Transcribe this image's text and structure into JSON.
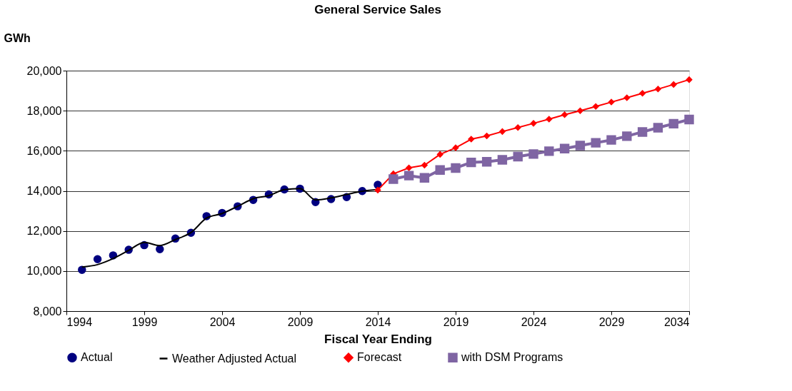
{
  "chart_data": {
    "type": "line",
    "title": "General Service Sales",
    "xlabel": "Fiscal Year Ending",
    "ylabel": "GWh",
    "xlim": [
      1994,
      2034
    ],
    "xticks": [
      1994,
      1999,
      2004,
      2009,
      2014,
      2019,
      2024,
      2029,
      2034
    ],
    "ylim": [
      8000,
      20000
    ],
    "yticks": [
      {
        "value": 8000,
        "label": "8,000"
      },
      {
        "value": 10000,
        "label": "10,000"
      },
      {
        "value": 12000,
        "label": "12,000"
      },
      {
        "value": 14000,
        "label": "14,000"
      },
      {
        "value": 16000,
        "label": "16,000"
      },
      {
        "value": 18000,
        "label": "18,000"
      },
      {
        "value": 20000,
        "label": "20,000"
      }
    ],
    "grid": "y",
    "legend": "bottom",
    "series": [
      {
        "name": "Actual",
        "type": "scatter",
        "marker": "circle",
        "color": "#000080",
        "x": [
          1995,
          1996,
          1997,
          1998,
          1999,
          2000,
          2001,
          2002,
          2003,
          2004,
          2005,
          2006,
          2007,
          2008,
          2009,
          2010,
          2011,
          2012,
          2013,
          2014
        ],
        "values": [
          10060,
          10590,
          10780,
          11060,
          11290,
          11090,
          11620,
          11910,
          12740,
          12900,
          13230,
          13550,
          13820,
          14070,
          14110,
          13440,
          13590,
          13690,
          13990,
          14300
        ]
      },
      {
        "name": "Weather Adjusted Actual",
        "type": "line",
        "marker": "none",
        "line_style": "solid",
        "color": "#000000",
        "x": [
          1995,
          1996,
          1997,
          1998,
          1999,
          2000,
          2001,
          2002,
          2003,
          2004,
          2005,
          2006,
          2007,
          2008,
          2009,
          2010,
          2011,
          2012,
          2013,
          2014
        ],
        "values": [
          10200,
          10320,
          10620,
          11030,
          11430,
          11270,
          11570,
          11920,
          12640,
          12870,
          13230,
          13610,
          13760,
          14060,
          14120,
          13550,
          13650,
          13820,
          13980,
          14060
        ]
      },
      {
        "name": "Forecast",
        "type": "line",
        "marker": "diamond",
        "line_style": "solid",
        "color": "#ff0000",
        "x": [
          2014,
          2015,
          2016,
          2017,
          2018,
          2019,
          2020,
          2021,
          2022,
          2023,
          2024,
          2025,
          2026,
          2027,
          2028,
          2029,
          2030,
          2031,
          2032,
          2033,
          2034
        ],
        "values": [
          14040,
          14850,
          15150,
          15280,
          15820,
          16150,
          16580,
          16740,
          16960,
          17160,
          17370,
          17580,
          17800,
          18000,
          18210,
          18430,
          18650,
          18870,
          19080,
          19310,
          19550
        ]
      },
      {
        "name": "with DSM Programs",
        "type": "line",
        "marker": "square",
        "line_style": "solid",
        "color": "#7f65a3",
        "x": [
          2015,
          2016,
          2017,
          2018,
          2019,
          2020,
          2021,
          2022,
          2023,
          2024,
          2025,
          2026,
          2027,
          2028,
          2029,
          2030,
          2031,
          2032,
          2033,
          2034
        ],
        "values": [
          14590,
          14760,
          14650,
          15040,
          15140,
          15420,
          15450,
          15550,
          15710,
          15840,
          15980,
          16110,
          16260,
          16400,
          16540,
          16730,
          16940,
          17150,
          17350,
          17560
        ]
      }
    ]
  }
}
